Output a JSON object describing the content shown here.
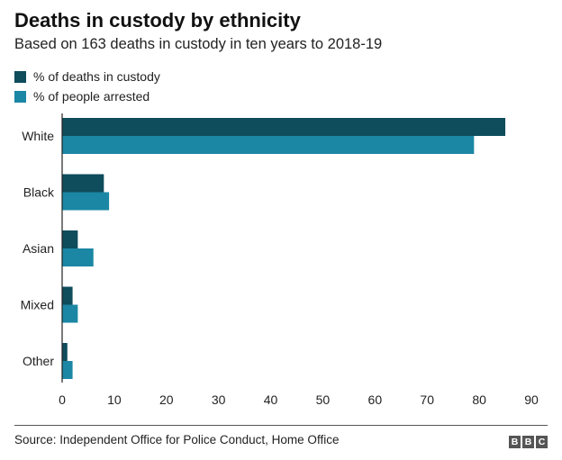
{
  "title": "Deaths in custody by ethnicity",
  "subtitle": "Based on 163 deaths in custody in ten years to 2018-19",
  "source": "Source: Independent Office for Police Conduct, Home Office",
  "logo": [
    "B",
    "B",
    "C"
  ],
  "colors": {
    "deaths": "#0f4c5c",
    "arrested": "#1b87a4",
    "axis": "#222222",
    "grid": "#dddddd"
  },
  "chart_data": {
    "type": "bar",
    "orientation": "horizontal",
    "categories": [
      "White",
      "Black",
      "Asian",
      "Mixed",
      "Other"
    ],
    "series": [
      {
        "name": "% of deaths in custody",
        "values": [
          85,
          8,
          3,
          2,
          1
        ]
      },
      {
        "name": "% of people arrested",
        "values": [
          79,
          9,
          6,
          3,
          2
        ]
      }
    ],
    "xlim": [
      0,
      90
    ],
    "xticks": [
      0,
      10,
      20,
      30,
      40,
      50,
      60,
      70,
      80,
      90
    ],
    "legend_position": "top-left",
    "grid": false
  }
}
